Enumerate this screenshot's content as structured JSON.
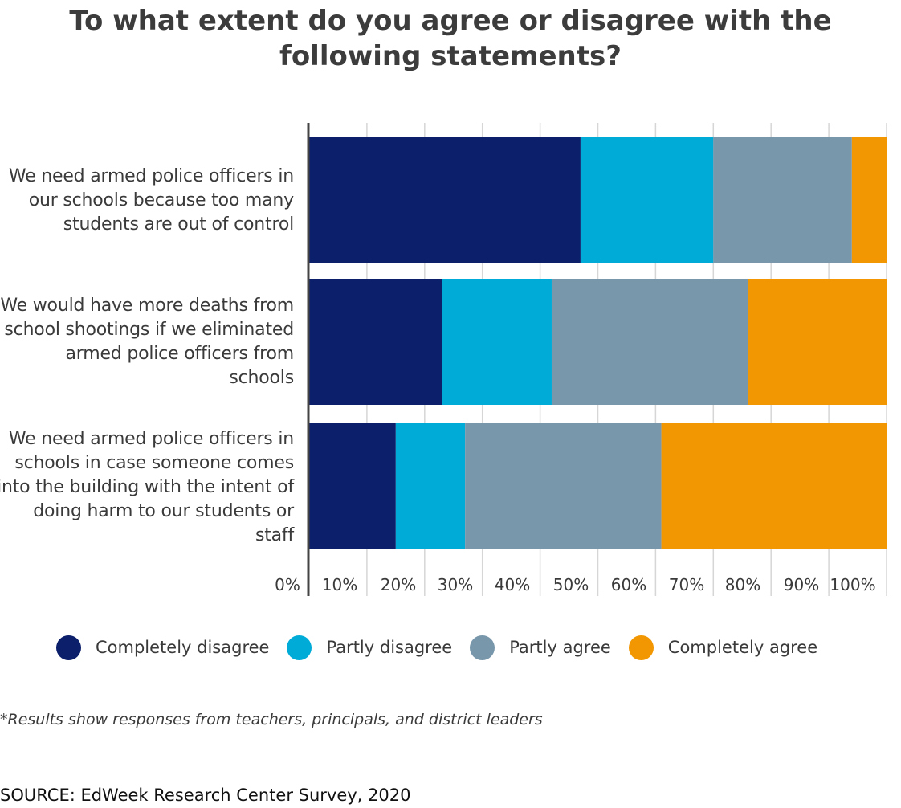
{
  "title_lines": [
    "To what extent do you agree or disagree with the",
    "following statements?"
  ],
  "chart_data": {
    "type": "bar",
    "orientation": "horizontal",
    "stacked": true,
    "categories": [
      [
        "We need armed police officers in",
        "our schools because too many",
        "students are out of control"
      ],
      [
        "We would have more deaths from",
        "school shootings if we eliminated",
        "armed police officers from",
        "schools"
      ],
      [
        "We need armed police officers in",
        "schools in case someone comes",
        "into the building with the intent of",
        "doing harm to our students or",
        "staff"
      ]
    ],
    "series": [
      {
        "name": "Completely disagree",
        "color": "#0c1f6b",
        "values": [
          47,
          23,
          15
        ]
      },
      {
        "name": "Partly disagree",
        "color": "#00abd8",
        "values": [
          23,
          19,
          12
        ]
      },
      {
        "name": "Partly agree",
        "color": "#7897ab",
        "values": [
          24,
          34,
          34
        ]
      },
      {
        "name": "Completely agree",
        "color": "#f29702",
        "values": [
          6,
          24,
          39
        ]
      }
    ],
    "xlim": [
      0,
      100
    ],
    "x_ticks": [
      "0%",
      "10%",
      "20%",
      "30%",
      "40%",
      "50%",
      "60%",
      "70%",
      "80%",
      "90%",
      "100%"
    ],
    "xlabel": "",
    "ylabel": "",
    "grid": true,
    "legend_position": "bottom"
  },
  "footnote": "*Results show responses from teachers, principals, and district leaders",
  "source": "SOURCE: EdWeek Research Center Survey, 2020"
}
